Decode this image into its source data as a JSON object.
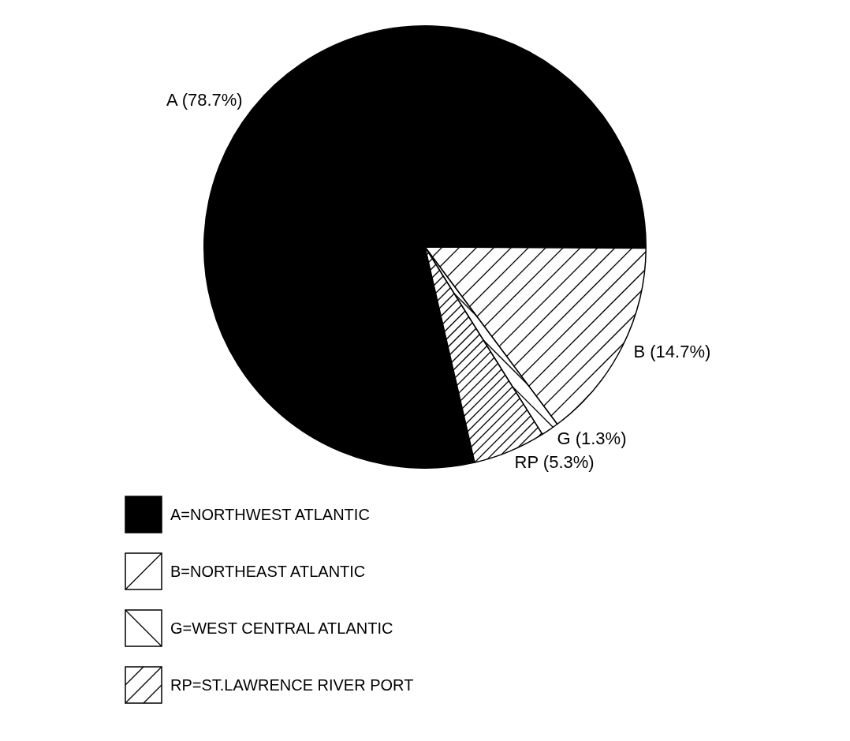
{
  "chart_data": {
    "type": "pie",
    "categories": [
      "A=NORTHWEST ATLANTIC",
      "B=NORTHEAST ATLANTIC",
      "G=WEST CENTRAL ATLANTIC",
      "RP=ST.LAWRENCE RIVER PORT"
    ],
    "values": [
      78.7,
      14.7,
      1.3,
      5.3
    ],
    "colors": [
      "#000000",
      "#ffffff",
      "#ffffff",
      "#ffffff"
    ],
    "value_labels": [
      "A (78.7%)",
      "B (14.7%)",
      "G (1.3%)",
      "RP (5.3%)"
    ],
    "legend": "bottom"
  }
}
